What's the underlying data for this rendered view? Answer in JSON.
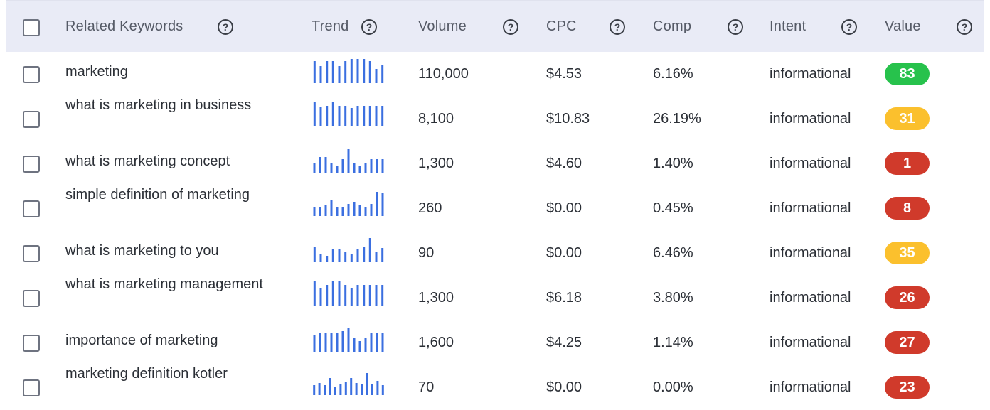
{
  "header": {
    "keywords_label": "Related Keywords",
    "trend_label": "Trend",
    "volume_label": "Volume",
    "cpc_label": "CPC",
    "comp_label": "Comp",
    "intent_label": "Intent",
    "value_label": "Value",
    "help_glyph": "?"
  },
  "colors": {
    "header_bg": "#e9ebf6",
    "trend_bar": "#3b6fe0",
    "badge_green": "#27c24c",
    "badge_yellow": "#fbc02d",
    "badge_red": "#d03a2b"
  },
  "rows": [
    {
      "keyword": "marketing",
      "volume": "110,000",
      "cpc": "$4.53",
      "comp": "6.16%",
      "intent": "informational",
      "value": "83",
      "value_color": "green",
      "trend": [
        0.9,
        0.7,
        0.9,
        0.9,
        0.7,
        0.9,
        1,
        1,
        1,
        0.9,
        0.6,
        0.75
      ]
    },
    {
      "keyword": "what is marketing in business",
      "volume": "8,100",
      "cpc": "$10.83",
      "comp": "26.19%",
      "intent": "informational",
      "value": "31",
      "value_color": "yellow",
      "trend": [
        1,
        0.8,
        0.85,
        1,
        0.85,
        0.85,
        0.75,
        0.85,
        0.85,
        0.85,
        0.85,
        0.85
      ]
    },
    {
      "keyword": "what is marketing concept",
      "volume": "1,300",
      "cpc": "$4.60",
      "comp": "1.40%",
      "intent": "informational",
      "value": "1",
      "value_color": "red",
      "trend": [
        0.4,
        0.65,
        0.65,
        0.4,
        0.3,
        0.55,
        1,
        0.4,
        0.25,
        0.4,
        0.55,
        0.55,
        0.55
      ]
    },
    {
      "keyword": "simple definition of marketing",
      "volume": "260",
      "cpc": "$0.00",
      "comp": "0.45%",
      "intent": "informational",
      "value": "8",
      "value_color": "red",
      "trend": [
        0.35,
        0.35,
        0.45,
        0.65,
        0.35,
        0.35,
        0.5,
        0.6,
        0.45,
        0.35,
        0.5,
        1,
        0.95
      ]
    },
    {
      "keyword": "what is marketing to you",
      "volume": "90",
      "cpc": "$0.00",
      "comp": "6.46%",
      "intent": "informational",
      "value": "35",
      "value_color": "yellow",
      "trend": [
        0.65,
        0.35,
        0.25,
        0.55,
        0.55,
        0.45,
        0.35,
        0.55,
        0.65,
        1,
        0.45,
        0.6
      ]
    },
    {
      "keyword": "what is marketing management",
      "volume": "1,300",
      "cpc": "$6.18",
      "comp": "3.80%",
      "intent": "informational",
      "value": "26",
      "value_color": "red",
      "trend": [
        1,
        0.7,
        0.85,
        1,
        1,
        0.85,
        0.7,
        0.85,
        0.85,
        0.85,
        0.85,
        0.85
      ]
    },
    {
      "keyword": "importance of marketing",
      "volume": "1,600",
      "cpc": "$4.25",
      "comp": "1.14%",
      "intent": "informational",
      "value": "27",
      "value_color": "red",
      "trend": [
        0.7,
        0.75,
        0.75,
        0.75,
        0.75,
        0.85,
        1,
        0.55,
        0.45,
        0.55,
        0.75,
        0.75,
        0.75
      ]
    },
    {
      "keyword": "marketing definition kotler",
      "volume": "70",
      "cpc": "$0.00",
      "comp": "0.00%",
      "intent": "informational",
      "value": "23",
      "value_color": "red",
      "trend": [
        0.4,
        0.5,
        0.4,
        0.7,
        0.35,
        0.45,
        0.55,
        0.7,
        0.5,
        0.45,
        0.9,
        0.45,
        0.6,
        0.4
      ]
    }
  ]
}
